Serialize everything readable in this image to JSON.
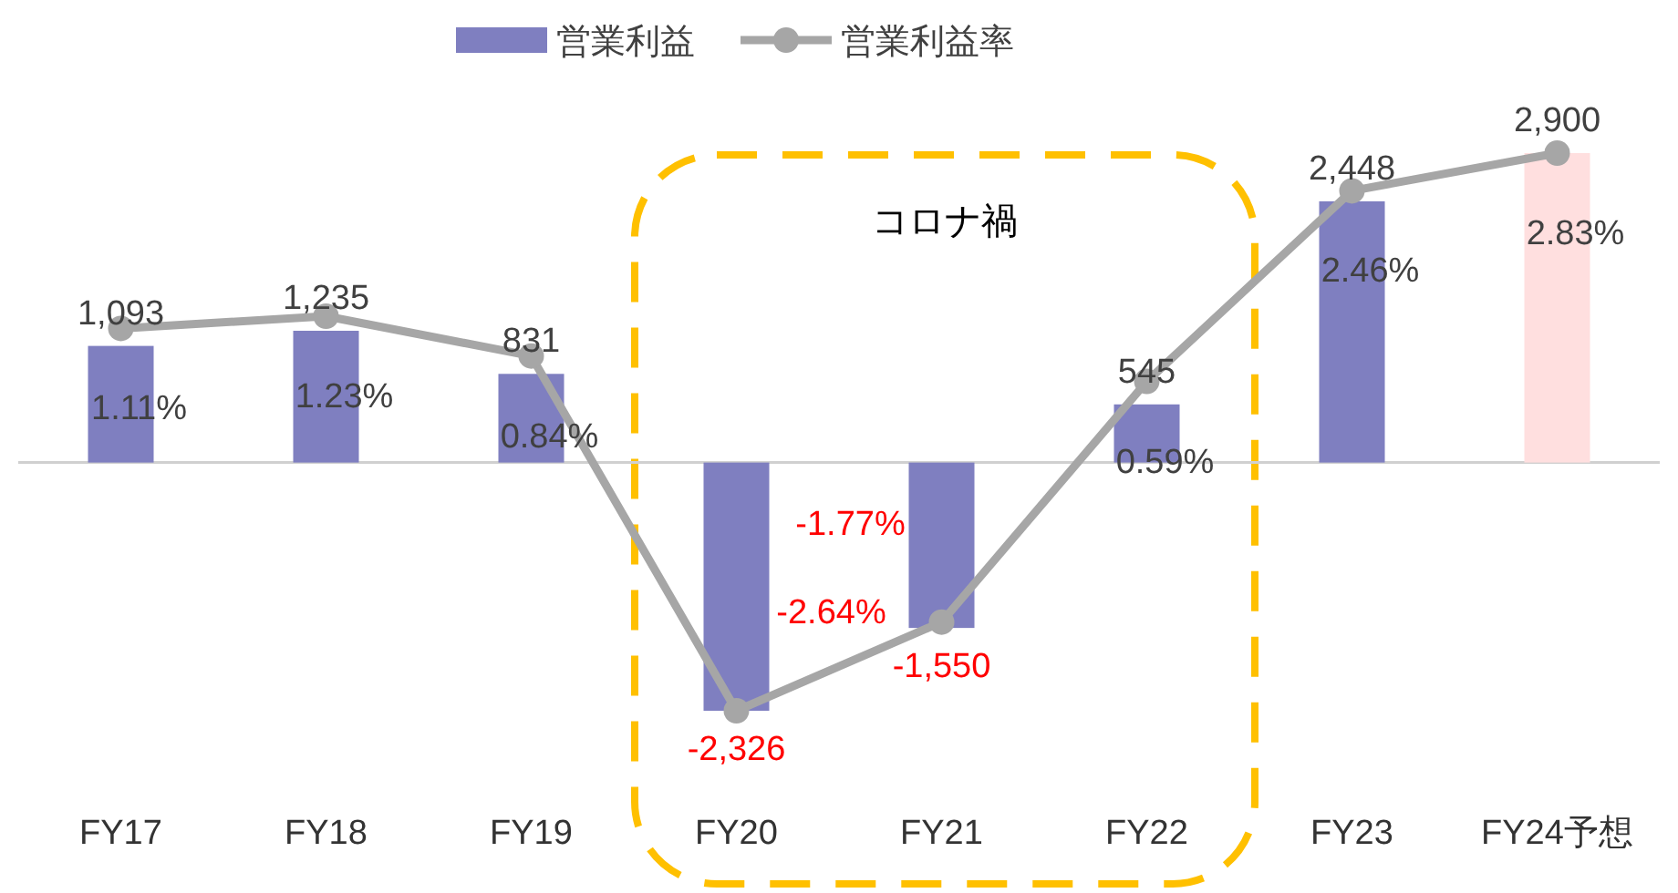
{
  "chart_data": {
    "type": "bar",
    "categories": [
      "FY17",
      "FY18",
      "FY19",
      "FY20",
      "FY21",
      "FY22",
      "FY23",
      "FY24予想"
    ],
    "series": [
      {
        "name": "営業利益",
        "color": "#7f7fc0",
        "colors": [
          "#7f7fc0",
          "#7f7fc0",
          "#7f7fc0",
          "#7f7fc0",
          "#7f7fc0",
          "#7f7fc0",
          "#7f7fc0",
          "#ffdfdf"
        ],
        "values": [
          1093,
          1235,
          831,
          -2326,
          -1550,
          545,
          2448,
          2900
        ],
        "value_labels": [
          "1,093",
          "1,235",
          "831",
          "-2,326",
          "-1,550",
          "545",
          "2,448",
          "2,900"
        ]
      },
      {
        "name": "営業利益率",
        "type": "line",
        "axis": "y2",
        "color": "#a6a6a6",
        "values": [
          1.11,
          1.23,
          0.84,
          -2.64,
          -1.77,
          0.59,
          2.46,
          2.83
        ],
        "value_labels": [
          "1.11%",
          "1.23%",
          "0.84%",
          "-2.64%",
          "-1.77%",
          "0.59%",
          "2.46%",
          "2.83%"
        ]
      }
    ],
    "marker": "circle",
    "line_style": "solid",
    "legend": "top",
    "tick_labels": "x",
    "annotations": [
      "コロナ禍"
    ]
  }
}
